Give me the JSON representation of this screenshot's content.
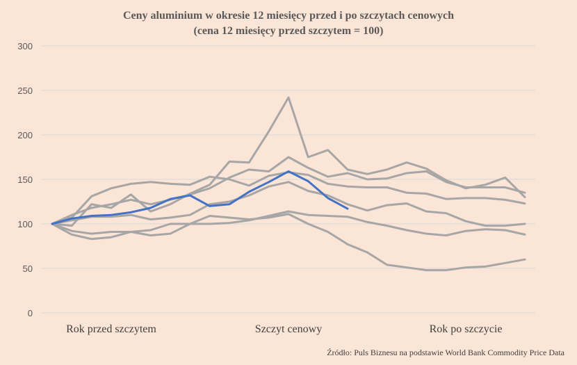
{
  "chart_data": {
    "type": "line",
    "title": "Ceny aluminium w okresie 12 miesięcy przed i po szczytach cenowych",
    "subtitle": "(cena 12 miesięcy przed szczytem = 100)",
    "xlabel": "",
    "ylabel": "",
    "ylim": [
      0,
      300
    ],
    "yticks": [
      0,
      50,
      100,
      150,
      200,
      250,
      300
    ],
    "x": [
      -12,
      -11,
      -10,
      -9,
      -8,
      -7,
      -6,
      -5,
      -4,
      -3,
      -2,
      -1,
      0,
      1,
      2,
      3,
      4,
      5,
      6,
      7,
      8,
      9,
      10,
      11,
      12
    ],
    "xlim": [
      -12,
      12
    ],
    "x_category_labels": [
      {
        "x": -9,
        "text": "Rok przed szczytem"
      },
      {
        "x": 0,
        "text": "Szczyt cenowy"
      },
      {
        "x": 9,
        "text": "Rok po szczycie"
      }
    ],
    "grid": true,
    "legend": "none",
    "colors": {
      "highlight": "#4472c4",
      "other": "#a6a6a6",
      "grid": "#d9d9d9",
      "background": "#fbe5d6"
    },
    "series": [
      {
        "highlight": false,
        "values": [
          100,
          98,
          122,
          118,
          133,
          114,
          122,
          134,
          144,
          170,
          169,
          204,
          242,
          175,
          183,
          161,
          156,
          161,
          169,
          162,
          149,
          140,
          144,
          152,
          130
        ]
      },
      {
        "highlight": false,
        "values": [
          100,
          110,
          118,
          122,
          127,
          122,
          127,
          133,
          140,
          152,
          161,
          159,
          175,
          163,
          153,
          157,
          150,
          151,
          157,
          159,
          147,
          141,
          141,
          141,
          135
        ]
      },
      {
        "highlight": false,
        "values": [
          100,
          107,
          131,
          140,
          145,
          147,
          145,
          144,
          153,
          150,
          143,
          154,
          158,
          155,
          145,
          142,
          141,
          141,
          135,
          134,
          128,
          129,
          129,
          127,
          123
        ]
      },
      {
        "highlight": false,
        "values": [
          100,
          104,
          108,
          108,
          110,
          105,
          107,
          110,
          122,
          125,
          132,
          142,
          147,
          137,
          132,
          122,
          115,
          121,
          123,
          114,
          112,
          103,
          98,
          98,
          100
        ]
      },
      {
        "highlight": false,
        "values": [
          100,
          92,
          89,
          91,
          91,
          93,
          100,
          100,
          109,
          107,
          105,
          107,
          111,
          100,
          91,
          77,
          68,
          54,
          51,
          48,
          48,
          51,
          52,
          56,
          60
        ]
      },
      {
        "highlight": false,
        "values": [
          100,
          88,
          83,
          85,
          91,
          87,
          89,
          100,
          100,
          101,
          104,
          109,
          114,
          110,
          109,
          108,
          102,
          98,
          93,
          89,
          87,
          92,
          94,
          93,
          88
        ]
      },
      {
        "highlight": true,
        "values": [
          100,
          106,
          109,
          110,
          113,
          118,
          128,
          132,
          120,
          122,
          136,
          147,
          159,
          148,
          129,
          117,
          null,
          null,
          null,
          null,
          null,
          null,
          null,
          null,
          null
        ]
      }
    ]
  },
  "source": "Źródło: Puls Biznesu na podstawie World Bank Commodity Price Data"
}
